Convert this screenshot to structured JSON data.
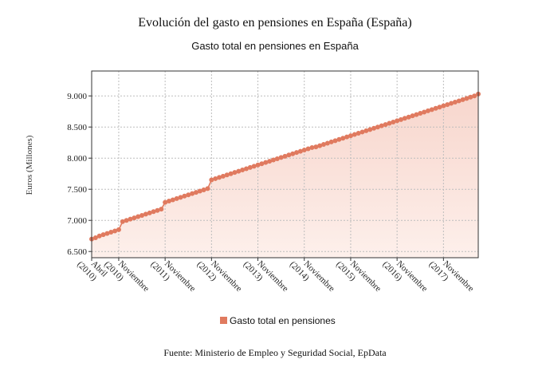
{
  "chart_data": {
    "type": "area",
    "title": "Evolución del gasto en pensiones en España (España)",
    "subtitle": "Gasto total en pensiones en España",
    "ylabel": "Euros (Millones)",
    "xlabel": "",
    "source": "Fuente: Ministerio de Empleo y Seguridad Social, EpData",
    "ylim": [
      6400,
      9400
    ],
    "y_ticks": [
      6500,
      7000,
      7500,
      8000,
      8500,
      9000
    ],
    "y_tick_labels": [
      "6.500",
      "7.000",
      "7.500",
      "8.000",
      "8.500",
      "9.000"
    ],
    "x_ticks": [
      {
        "index": 0,
        "line1": "Abril",
        "line2": "(2010)"
      },
      {
        "index": 7,
        "line1": "Noviembre",
        "line2": "(2010)"
      },
      {
        "index": 19,
        "line1": "Noviembre",
        "line2": "(2011)"
      },
      {
        "index": 31,
        "line1": "Noviembre",
        "line2": "(2012)"
      },
      {
        "index": 43,
        "line1": "Noviembre",
        "line2": "(2013)"
      },
      {
        "index": 55,
        "line1": "Noviembre",
        "line2": "(2014)"
      },
      {
        "index": 67,
        "line1": "Noviembre",
        "line2": "(2015)"
      },
      {
        "index": 79,
        "line1": "Noviembre",
        "line2": "(2016)"
      },
      {
        "index": 91,
        "line1": "Noviembre",
        "line2": "(2017)"
      }
    ],
    "grid": true,
    "legend_position": "bottom",
    "series": [
      {
        "name": "Gasto total en pensiones",
        "color": "#e07a5f",
        "values": [
          6700,
          6720,
          6750,
          6770,
          6790,
          6810,
          6830,
          6850,
          6980,
          7000,
          7020,
          7040,
          7060,
          7080,
          7100,
          7120,
          7140,
          7160,
          7180,
          7290,
          7310,
          7330,
          7350,
          7370,
          7390,
          7410,
          7430,
          7450,
          7470,
          7490,
          7510,
          7650,
          7670,
          7690,
          7710,
          7730,
          7750,
          7770,
          7790,
          7810,
          7830,
          7850,
          7870,
          7890,
          7910,
          7930,
          7950,
          7970,
          7990,
          8010,
          8030,
          8050,
          8070,
          8090,
          8110,
          8130,
          8150,
          8170,
          8180,
          8200,
          8220,
          8240,
          8260,
          8280,
          8300,
          8320,
          8340,
          8360,
          8380,
          8400,
          8420,
          8440,
          8460,
          8480,
          8500,
          8520,
          8540,
          8560,
          8580,
          8600,
          8620,
          8640,
          8660,
          8680,
          8700,
          8720,
          8740,
          8760,
          8780,
          8800,
          8820,
          8840,
          8860,
          8880,
          8900,
          8920,
          8940,
          8960,
          8980,
          9000,
          9030
        ]
      }
    ]
  }
}
